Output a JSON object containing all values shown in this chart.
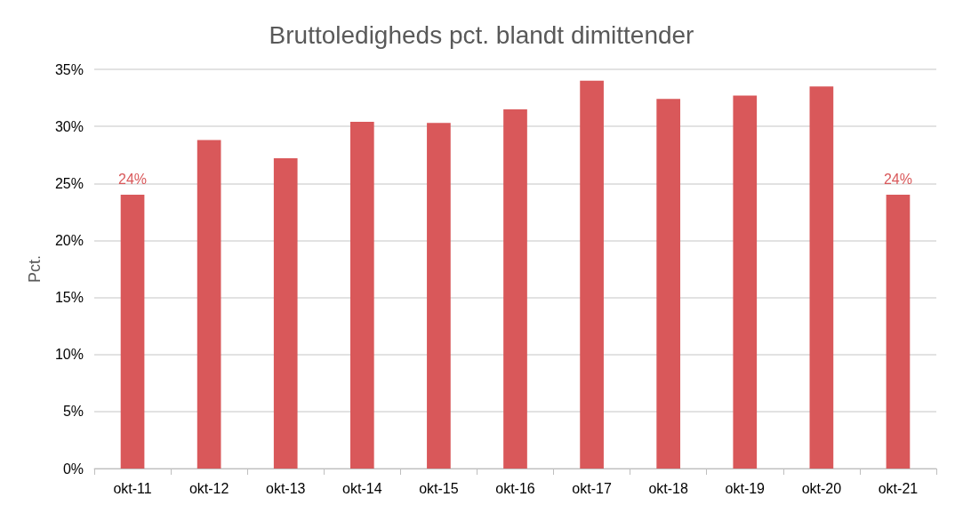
{
  "chart_data": {
    "type": "bar",
    "title": "Bruttoledigheds pct. blandt dimittender",
    "ylabel": "Pct.",
    "categories": [
      "okt-11",
      "okt-12",
      "okt-13",
      "okt-14",
      "okt-15",
      "okt-16",
      "okt-17",
      "okt-18",
      "okt-19",
      "okt-20",
      "okt-21"
    ],
    "values": [
      24,
      28.8,
      27.2,
      30.4,
      30.3,
      31.5,
      34,
      32.4,
      32.7,
      33.5,
      24
    ],
    "value_labels": [
      "24%",
      null,
      null,
      null,
      null,
      null,
      null,
      null,
      null,
      null,
      "24%"
    ],
    "color": "#d9585a",
    "ylim": [
      0,
      35
    ],
    "yticks": [
      {
        "value": 0,
        "label": "0%"
      },
      {
        "value": 5,
        "label": "5%"
      },
      {
        "value": 10,
        "label": "10%"
      },
      {
        "value": 15,
        "label": "15%"
      },
      {
        "value": 20,
        "label": "20%"
      },
      {
        "value": 25,
        "label": "25%"
      },
      {
        "value": 30,
        "label": "30%"
      },
      {
        "value": 35,
        "label": "35%"
      }
    ],
    "grid": "y"
  }
}
